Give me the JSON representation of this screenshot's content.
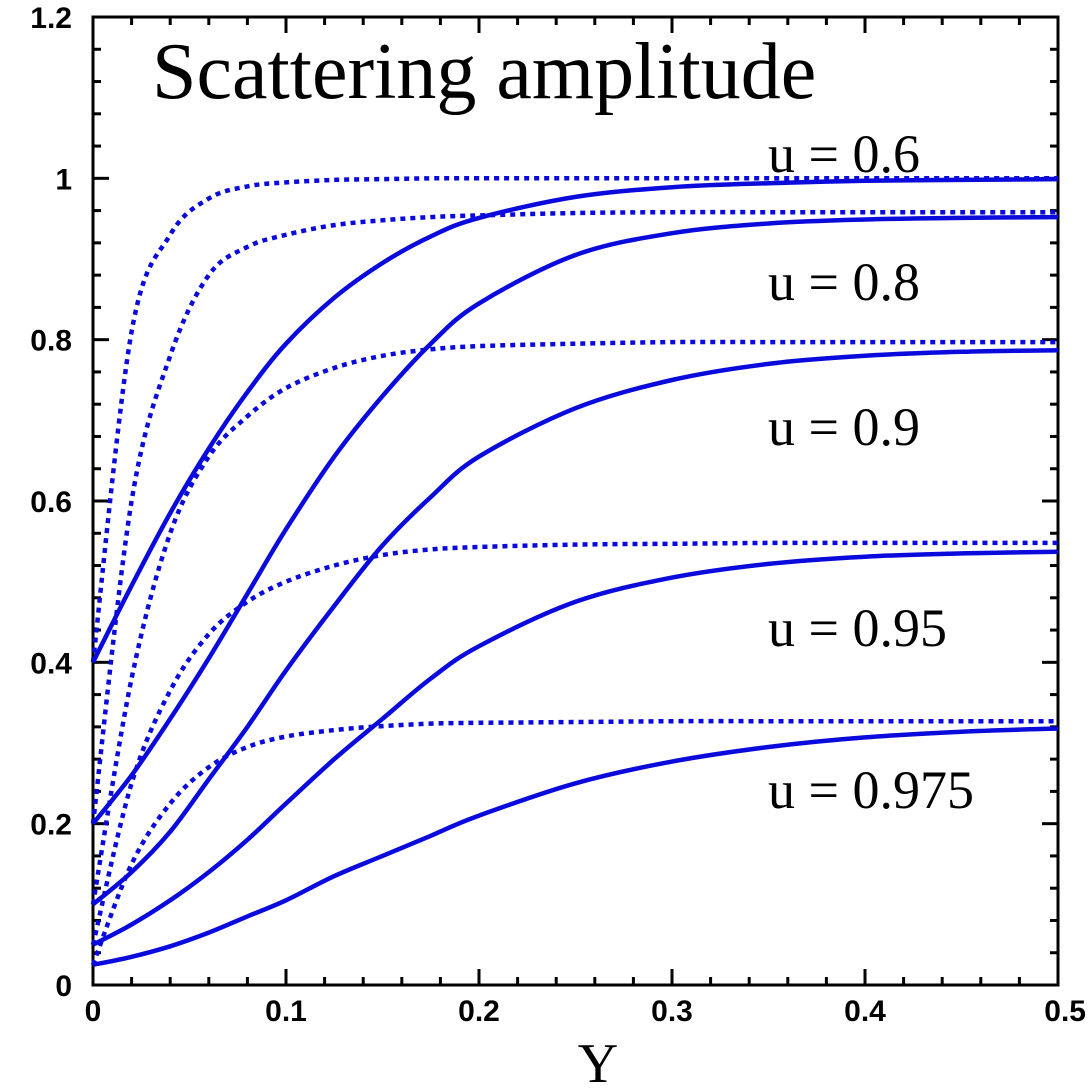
{
  "chart_data": {
    "type": "line",
    "title": "Scattering amplitude",
    "xlabel": "Y",
    "ylabel": "",
    "xlim": [
      0,
      0.5
    ],
    "ylim": [
      0,
      1.2
    ],
    "x_ticks": [
      "0",
      "0.1",
      "0.2",
      "0.3",
      "0.4",
      "0.5"
    ],
    "y_ticks": [
      "0",
      "0.2",
      "0.4",
      "0.6",
      "0.8",
      "1",
      "1.2"
    ],
    "grid": false,
    "line_color": "#0a0adc",
    "annotations": [
      "u = 0.6",
      "u = 0.8",
      "u = 0.9",
      "u = 0.95",
      "u = 0.975"
    ],
    "x": [
      0,
      0.02,
      0.04,
      0.06,
      0.08,
      0.1,
      0.125,
      0.15,
      0.175,
      0.2,
      0.25,
      0.3,
      0.35,
      0.4,
      0.45,
      0.5
    ],
    "series": [
      {
        "style": "solid",
        "values": [
          0.4,
          0.495,
          0.585,
          0.665,
          0.735,
          0.795,
          0.852,
          0.895,
          0.928,
          0.951,
          0.977,
          0.989,
          0.994,
          0.997,
          0.998,
          0.999
        ]
      },
      {
        "style": "dotted",
        "values": [
          0.4,
          0.81,
          0.93,
          0.975,
          0.99,
          0.995,
          0.998,
          0.999,
          1.0,
          1.0,
          1.0,
          1.0,
          1.0,
          1.0,
          1.0,
          1.0
        ]
      },
      {
        "style": "solid",
        "values": [
          0.2,
          0.26,
          0.33,
          0.405,
          0.485,
          0.565,
          0.655,
          0.73,
          0.795,
          0.845,
          0.905,
          0.932,
          0.944,
          0.949,
          0.951,
          0.952
        ]
      },
      {
        "style": "dotted",
        "values": [
          0.2,
          0.6,
          0.78,
          0.88,
          0.915,
          0.93,
          0.942,
          0.948,
          0.952,
          0.954,
          0.957,
          0.958,
          0.958,
          0.958,
          0.958,
          0.958
        ]
      },
      {
        "style": "solid",
        "values": [
          0.1,
          0.14,
          0.19,
          0.255,
          0.32,
          0.39,
          0.47,
          0.545,
          0.605,
          0.655,
          0.715,
          0.75,
          0.77,
          0.78,
          0.785,
          0.787
        ]
      },
      {
        "style": "dotted",
        "values": [
          0.1,
          0.38,
          0.56,
          0.655,
          0.705,
          0.74,
          0.765,
          0.78,
          0.788,
          0.792,
          0.795,
          0.797,
          0.797,
          0.797,
          0.797,
          0.797
        ]
      },
      {
        "style": "solid",
        "values": [
          0.05,
          0.075,
          0.105,
          0.14,
          0.18,
          0.225,
          0.28,
          0.33,
          0.38,
          0.42,
          0.475,
          0.505,
          0.522,
          0.531,
          0.535,
          0.537
        ]
      },
      {
        "style": "dotted",
        "values": [
          0.05,
          0.25,
          0.365,
          0.435,
          0.475,
          0.5,
          0.52,
          0.533,
          0.54,
          0.543,
          0.546,
          0.547,
          0.548,
          0.548,
          0.548,
          0.548
        ]
      },
      {
        "style": "solid",
        "values": [
          0.025,
          0.035,
          0.048,
          0.065,
          0.085,
          0.105,
          0.135,
          0.16,
          0.185,
          0.21,
          0.25,
          0.277,
          0.295,
          0.307,
          0.314,
          0.318
        ]
      },
      {
        "style": "dotted",
        "values": [
          0.025,
          0.15,
          0.225,
          0.27,
          0.295,
          0.308,
          0.316,
          0.321,
          0.324,
          0.325,
          0.326,
          0.327,
          0.327,
          0.327,
          0.327,
          0.327
        ]
      }
    ]
  }
}
